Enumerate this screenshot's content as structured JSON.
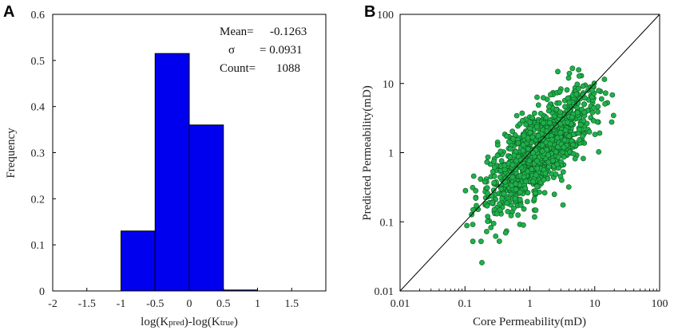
{
  "chart_data": [
    {
      "panel": "A",
      "type": "bar",
      "title": "",
      "xlabel": "log(Kpred)-log(Ktrue)",
      "xlabel_parts": {
        "prefix": "log(K",
        "sub1": "pred",
        "mid": ")-log(K",
        "sub2": "true",
        "suffix": ")"
      },
      "ylabel": "Frequency",
      "xlim": [
        -2,
        2
      ],
      "ylim": [
        0,
        0.6
      ],
      "x_ticks": [
        "-2",
        "-1.5",
        "-1",
        "-0.5",
        "0",
        "0.5",
        "1",
        "1.5"
      ],
      "y_ticks": [
        "0",
        "0.1",
        "0.2",
        "0.3",
        "0.4",
        "0.5",
        "0.6"
      ],
      "bins": [
        {
          "from": -1.0,
          "to": -0.5,
          "value": 0.13
        },
        {
          "from": -0.5,
          "to": 0.0,
          "value": 0.515
        },
        {
          "from": 0.0,
          "to": 0.5,
          "value": 0.36
        },
        {
          "from": 0.5,
          "to": 1.0,
          "value": 0.002
        }
      ],
      "bar_color": "#0000ee",
      "stats": [
        {
          "label": "Mean=",
          "value": "-0.1263"
        },
        {
          "label": "σ",
          "value": "= 0.0931"
        },
        {
          "label": "Count=",
          "value": "1088"
        }
      ]
    },
    {
      "panel": "B",
      "type": "scatter",
      "title": "",
      "xlabel": "Core Permeability(mD)",
      "ylabel": "Predicted Permeability(mD)",
      "xscale": "log",
      "yscale": "log",
      "xlim": [
        0.01,
        100
      ],
      "ylim": [
        0.01,
        100
      ],
      "x_ticks": [
        "0.01",
        "0.1",
        "1",
        "10",
        "100"
      ],
      "y_ticks": [
        "0.01",
        "0.1",
        "1",
        "10",
        "100"
      ],
      "reference_line": "y = x",
      "point_color": "#1fb04a",
      "point_count": 1088,
      "cloud": {
        "x_range": [
          0.1,
          20
        ],
        "slope": 0.8,
        "log_bias": -0.12,
        "log_spread": 0.3
      }
    }
  ]
}
